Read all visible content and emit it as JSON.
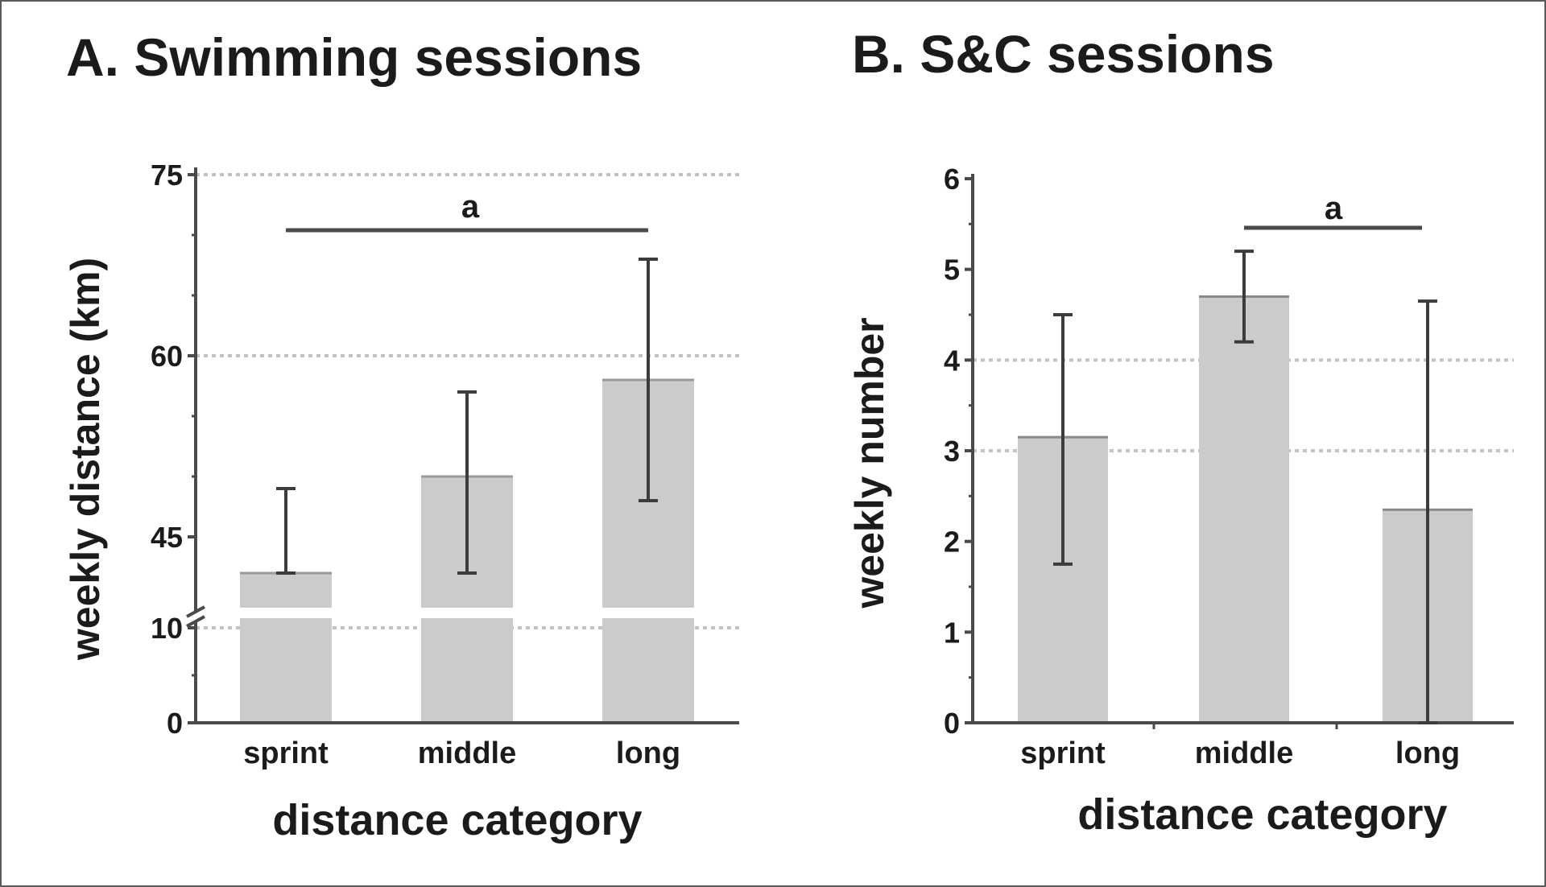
{
  "chart_data": [
    {
      "type": "bar",
      "panel": "A",
      "title": "A. Swimming sessions",
      "xlabel": "distance category",
      "ylabel": "weekly distance (km)",
      "categories": [
        "sprint",
        "middle",
        "long"
      ],
      "values": [
        42,
        50,
        58
      ],
      "error_low": [
        42,
        42,
        48
      ],
      "error_high": [
        49,
        57,
        68
      ],
      "axis_break": "between 10 and 45",
      "lower_segment": {
        "ylim": [
          0,
          10
        ],
        "ticks": [
          "0",
          "10"
        ]
      },
      "upper_segment": {
        "ylim": [
          45,
          75
        ],
        "ticks": [
          "45",
          "60",
          "75"
        ]
      },
      "significance": {
        "label": "a",
        "from": "sprint",
        "to": "long"
      },
      "reference_lines": [
        10,
        60,
        75
      ]
    },
    {
      "type": "bar",
      "panel": "B",
      "title": "B. S&C sessions",
      "xlabel": "distance category",
      "ylabel": "weekly number",
      "categories": [
        "sprint",
        "middle",
        "long"
      ],
      "values": [
        3.15,
        4.7,
        2.35
      ],
      "error_low": [
        1.75,
        4.2,
        0.0
      ],
      "error_high": [
        4.5,
        5.2,
        4.65
      ],
      "ylim": [
        0,
        6
      ],
      "ticks": [
        "0",
        "1",
        "2",
        "3",
        "4",
        "5",
        "6"
      ],
      "significance": {
        "label": "a",
        "from": "middle",
        "to": "long"
      },
      "reference_lines": [
        3,
        4
      ]
    }
  ],
  "colors": {
    "bar": "#cbcbcb",
    "axis": "#4a4a4a",
    "error": "#3c3c3c",
    "ref_line": "#c2c2c2",
    "text": "#1b1b1b"
  }
}
